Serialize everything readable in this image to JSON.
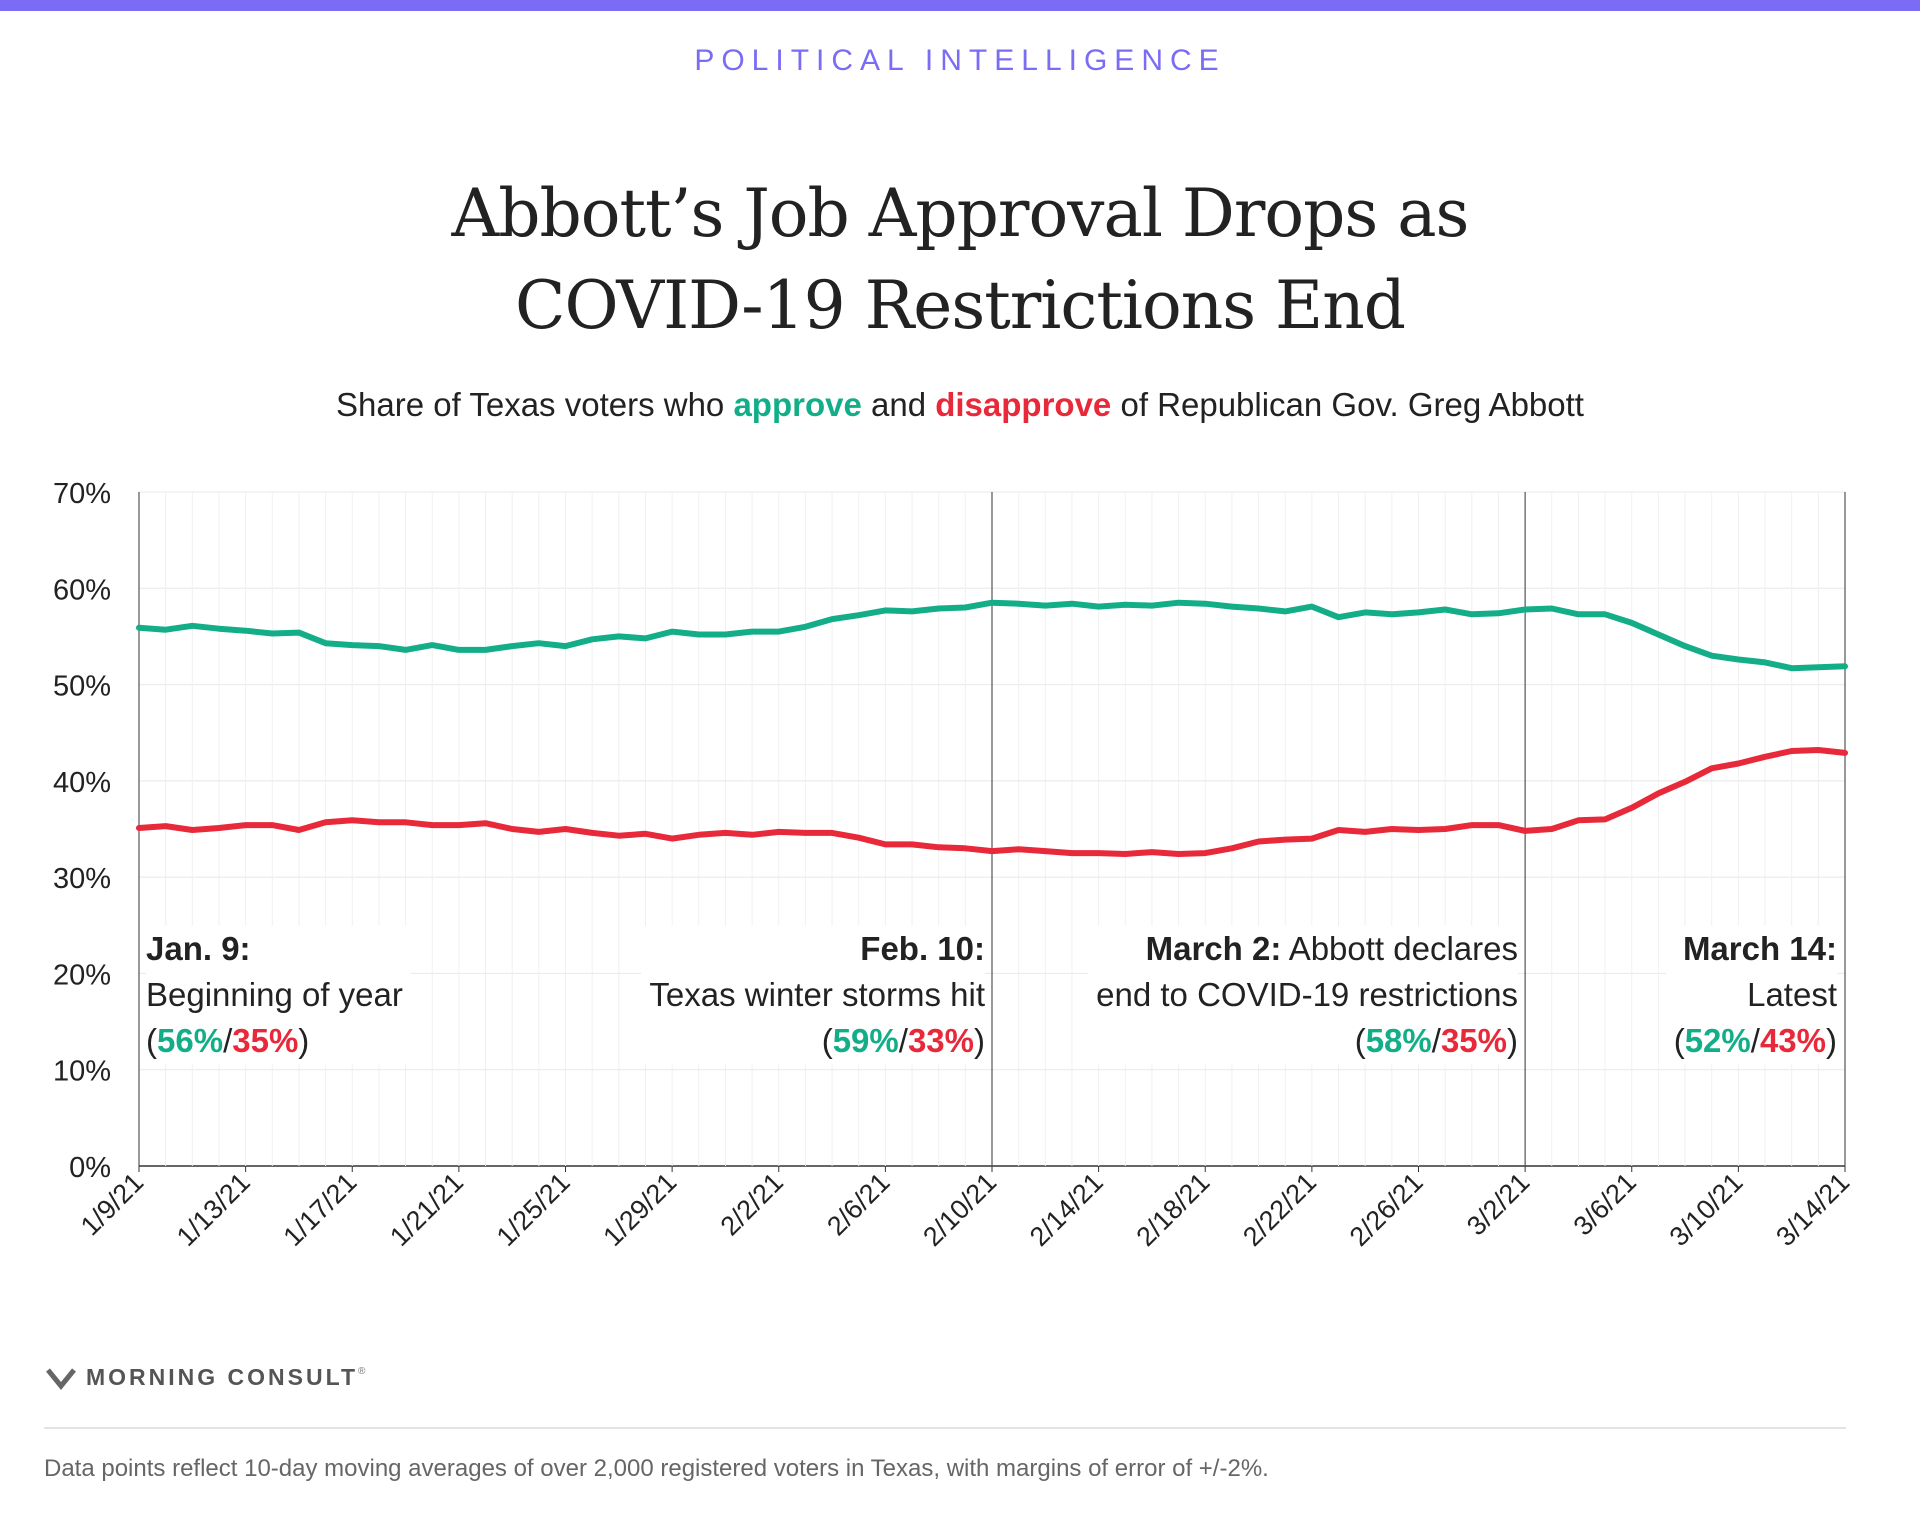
{
  "kicker": "POLITICAL INTELLIGENCE",
  "title_line1": "Abbott’s Job Approval Drops as",
  "title_line2": "COVID-19 Restrictions End",
  "subtitle": {
    "pre": "Share of Texas voters who ",
    "approve": "approve",
    "mid": " and ",
    "disapprove": "disapprove",
    "post": " of Republican Gov. Greg Abbott"
  },
  "colors": {
    "approve": "#13ae88",
    "disapprove": "#e8293a",
    "accent": "#7b6cf6"
  },
  "annotations": [
    {
      "date": "Jan. 9:",
      "text1": "",
      "text2": "Beginning of year",
      "approve": "56%",
      "disapprove": "35%",
      "open": "(",
      "sep": "/",
      "close": ")"
    },
    {
      "date": "Feb. 10:",
      "text1": "",
      "text2": "Texas winter storms hit",
      "approve": "59%",
      "disapprove": "33%",
      "open": "(",
      "sep": "/",
      "close": ")"
    },
    {
      "date": "March 2:",
      "text1": " Abbott declares",
      "text2": "end to COVID-19 restrictions",
      "approve": "58%",
      "disapprove": "35%",
      "open": "(",
      "sep": "/",
      "close": ")"
    },
    {
      "date": "March 14:",
      "text1": "",
      "text2": "Latest",
      "approve": "52%",
      "disapprove": "43%",
      "open": "(",
      "sep": "/",
      "close": ")"
    }
  ],
  "chart_data": {
    "type": "line",
    "x_ticks": [
      "1/9/21",
      "1/13/21",
      "1/17/21",
      "1/21/21",
      "1/25/21",
      "1/29/21",
      "2/2/21",
      "2/6/21",
      "2/10/21",
      "2/14/21",
      "2/18/21",
      "2/22/21",
      "2/26/21",
      "3/2/21",
      "3/6/21",
      "3/10/21",
      "3/14/21"
    ],
    "y_ticks": [
      "0%",
      "10%",
      "20%",
      "30%",
      "40%",
      "50%",
      "60%",
      "70%"
    ],
    "ylim": [
      0,
      70
    ],
    "x_range": [
      "1/9/21",
      "3/14/21"
    ],
    "reference_dates": [
      "2/10/21",
      "3/2/21"
    ],
    "grid": true,
    "series": [
      {
        "name": "approve",
        "color": "#13ae88",
        "values": [
          55.9,
          55.7,
          56.1,
          55.8,
          55.6,
          55.3,
          55.4,
          54.3,
          54.1,
          54.0,
          53.6,
          54.1,
          53.6,
          53.6,
          54.0,
          54.3,
          54.0,
          54.7,
          55.0,
          54.8,
          55.5,
          55.2,
          55.2,
          55.5,
          55.5,
          56.0,
          56.8,
          57.2,
          57.7,
          57.6,
          57.9,
          58.0,
          58.5,
          58.4,
          58.2,
          58.4,
          58.1,
          58.3,
          58.2,
          58.5,
          58.4,
          58.1,
          57.9,
          57.6,
          58.1,
          57.0,
          57.5,
          57.3,
          57.5,
          57.8,
          57.3,
          57.4,
          57.8,
          57.9,
          57.3,
          57.3,
          56.4,
          55.2,
          54.0,
          53.0,
          52.6,
          52.3,
          51.7,
          51.8,
          51.9
        ]
      },
      {
        "name": "disapprove",
        "color": "#e8293a",
        "values": [
          35.1,
          35.3,
          34.9,
          35.1,
          35.4,
          35.4,
          34.9,
          35.7,
          35.9,
          35.7,
          35.7,
          35.4,
          35.4,
          35.6,
          35.0,
          34.7,
          35.0,
          34.6,
          34.3,
          34.5,
          34.0,
          34.4,
          34.6,
          34.4,
          34.7,
          34.6,
          34.6,
          34.1,
          33.4,
          33.4,
          33.1,
          33.0,
          32.7,
          32.9,
          32.7,
          32.5,
          32.5,
          32.4,
          32.6,
          32.4,
          32.5,
          33.0,
          33.7,
          33.9,
          34.0,
          34.9,
          34.7,
          35.0,
          34.9,
          35.0,
          35.4,
          35.4,
          34.8,
          35.0,
          35.9,
          36.0,
          37.2,
          38.7,
          39.9,
          41.3,
          41.8,
          42.5,
          43.1,
          43.2,
          42.9
        ]
      }
    ]
  },
  "logo": {
    "text": "MORNING CONSULT",
    "mark": "®",
    "icon": "morning-consult-m-icon"
  },
  "footnote": "Data points reflect 10-day moving averages of over 2,000 registered voters in Texas, with margins of error of +/-2%."
}
